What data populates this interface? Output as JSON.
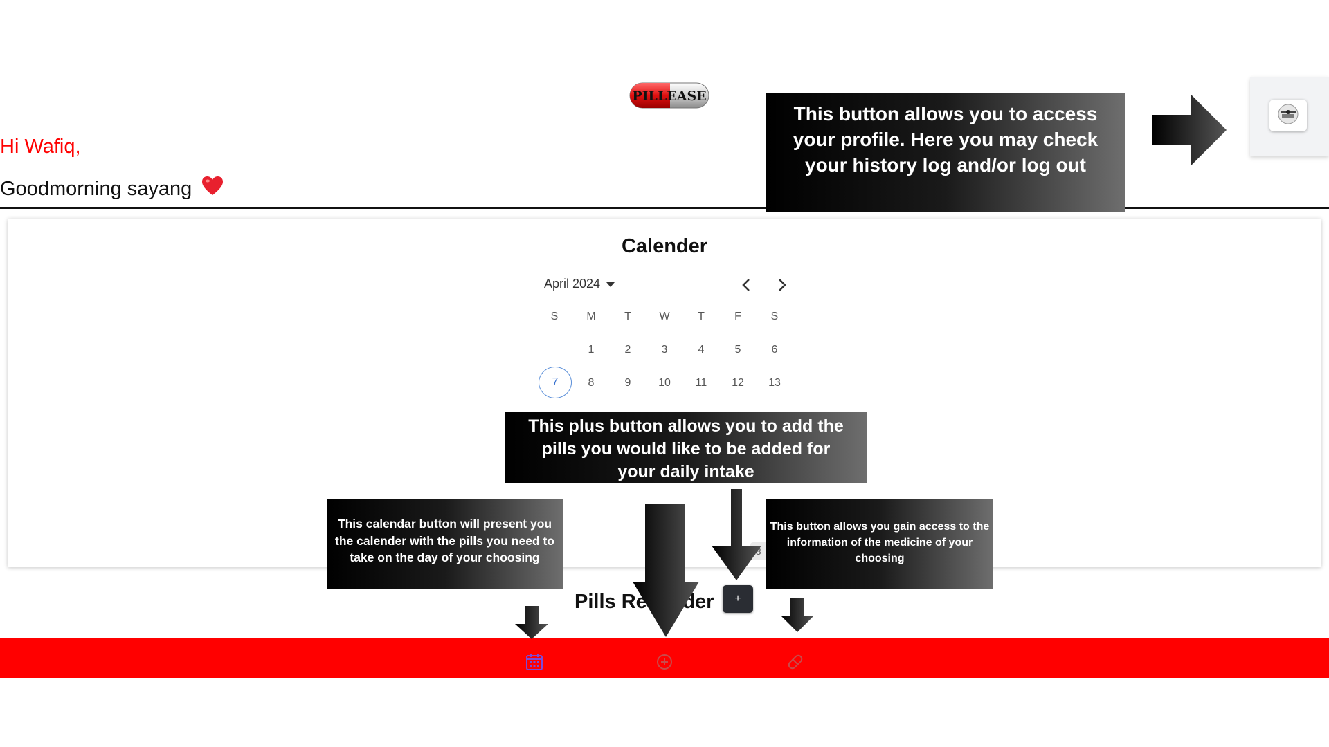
{
  "app": {
    "logo_text": "PILLEASE"
  },
  "header": {
    "greeting": "Hi Wafiq,",
    "subtitle": "Goodmorning sayang",
    "emoji": "❤️"
  },
  "calendar": {
    "title": "Calender",
    "month_label": "April 2024",
    "weekday_headers": [
      "S",
      "M",
      "T",
      "W",
      "T",
      "F",
      "S"
    ],
    "weeks": [
      [
        "",
        "1",
        "2",
        "3",
        "4",
        "5",
        "6"
      ],
      [
        "7",
        "8",
        "9",
        "10",
        "11",
        "12",
        "13"
      ]
    ],
    "today": "7",
    "partial_chip": "18"
  },
  "pills_section": {
    "title": "Pills Reminder",
    "plus_label": "+"
  },
  "bottom_nav": [
    {
      "name": "calendar-icon",
      "color": "#7b4bd8"
    },
    {
      "name": "plus-circle-icon",
      "color": "#c94a4a"
    },
    {
      "name": "pill-icon",
      "color": "#c94a4a"
    }
  ],
  "tooltips": {
    "profile": "This button allows you to access your profile. Here you may check your history log and/or log out",
    "plus": "This plus button allows you to add the pills you would like to be added for your daily intake",
    "calendar": "This calendar button will present you the calender with the pills you need to take on the day of your choosing",
    "medicine": "This button allows you gain access to the information of the medicine of your choosing"
  },
  "colors": {
    "accent": "#ff0000",
    "today_ring": "#5b8fd9"
  }
}
